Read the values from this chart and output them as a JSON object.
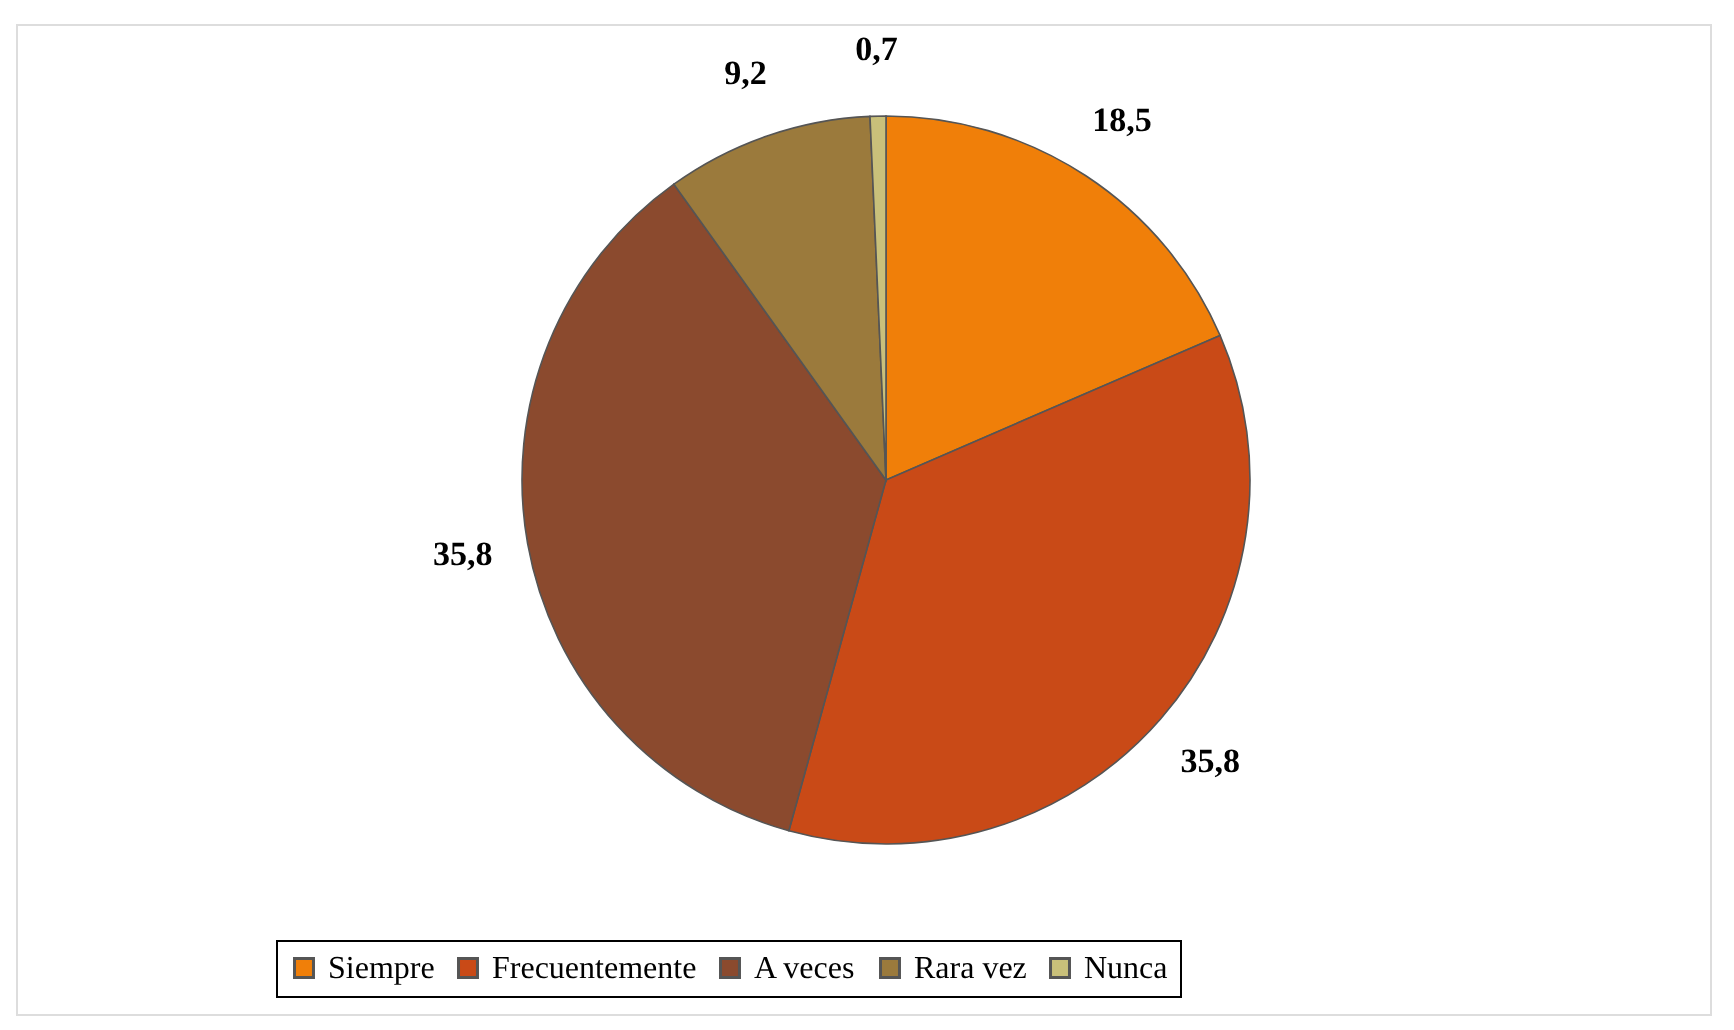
{
  "chart_data": {
    "type": "pie",
    "categories": [
      "Siempre",
      "Frecuentemente",
      "A veces",
      "Rara vez",
      "Nunca"
    ],
    "values": [
      18.5,
      35.8,
      35.8,
      9.2,
      0.7
    ],
    "colors": [
      "#f07f09",
      "#c94a17",
      "#8b4a2e",
      "#9b7a3c",
      "#c9c07a"
    ],
    "value_labels": [
      "18,5",
      "35,8",
      "35,8",
      "9,2",
      "0,7"
    ],
    "legend": "bottom"
  }
}
